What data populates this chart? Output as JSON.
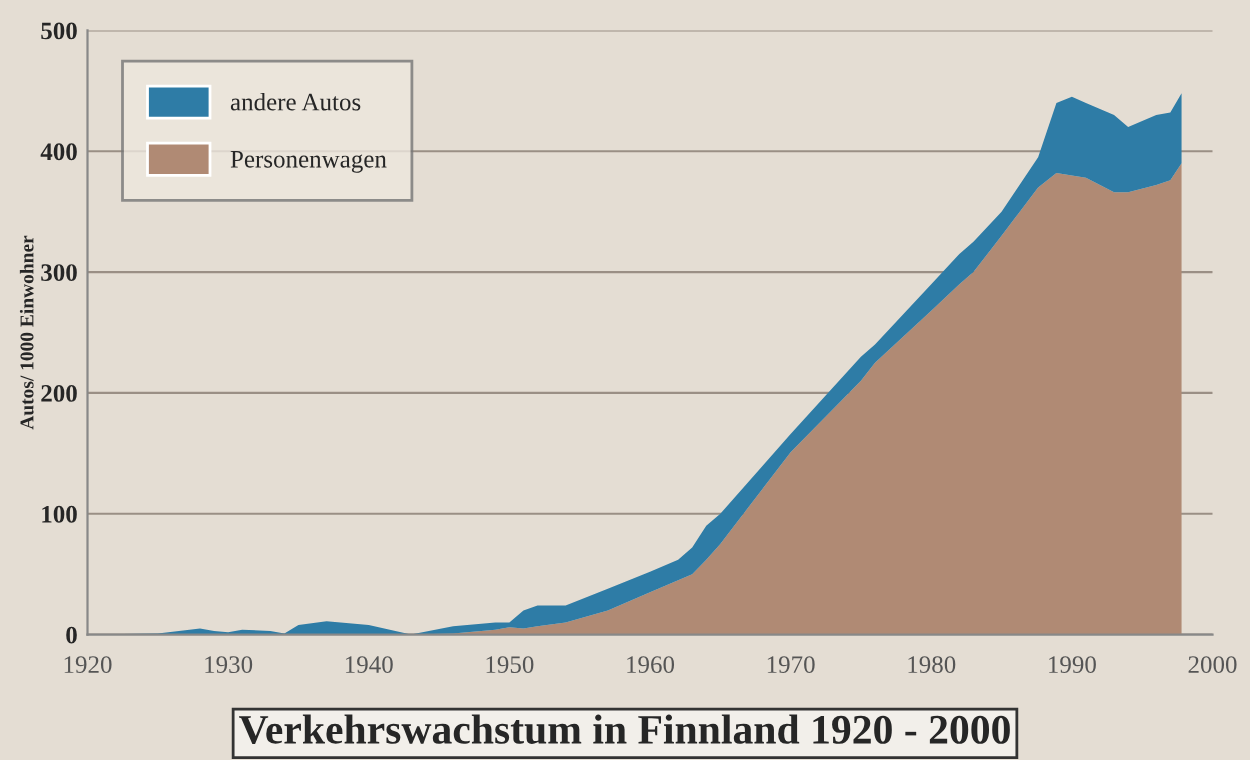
{
  "chart_data": {
    "type": "area",
    "stacked": true,
    "title": "Verkehrswachstum in Finnland 1920 - 2000",
    "ylabel": "Autos/ 1000 Einwohner",
    "x": [
      1920,
      1925,
      1928,
      1929,
      1930,
      1931,
      1933,
      1934,
      1935,
      1937,
      1940,
      1943,
      1946,
      1949,
      1950,
      1951,
      1952,
      1954,
      1957,
      1960,
      1962,
      1963,
      1964,
      1965,
      1970,
      1975,
      1976,
      1980,
      1982,
      1983,
      1985,
      1987.6,
      1988.9,
      1990,
      1991,
      1993,
      1994,
      1996,
      1997,
      1997.8
    ],
    "series": [
      {
        "name": "Personenwagen",
        "color": "#b08a74",
        "values": [
          0,
          0,
          0,
          0,
          0,
          0,
          0,
          0,
          0,
          0,
          0,
          0,
          1,
          4,
          6,
          5,
          7,
          10,
          20,
          35,
          45,
          50,
          62,
          75,
          151,
          210,
          225,
          268,
          290,
          300,
          330,
          370,
          382,
          380,
          378,
          366,
          366,
          372,
          376,
          390
        ]
      },
      {
        "name": "andere Autos",
        "color": "#2e7ca6",
        "values": [
          0,
          1,
          5,
          3,
          2,
          4,
          3,
          1,
          8,
          11,
          8,
          0,
          6,
          6,
          4,
          15,
          17,
          14,
          18,
          17,
          17,
          22,
          28,
          25,
          15,
          20,
          15,
          22,
          25,
          25,
          20,
          25,
          58,
          65,
          62,
          64,
          54,
          58,
          56,
          58
        ]
      }
    ],
    "xlim": [
      1920,
      2000
    ],
    "xticks": [
      1920,
      1930,
      1940,
      1950,
      1960,
      1970,
      1980,
      1990,
      2000
    ],
    "ylim": [
      0,
      500
    ],
    "yticks": [
      0,
      100,
      200,
      300,
      400,
      500
    ],
    "grid": "y",
    "legend": "top left"
  }
}
